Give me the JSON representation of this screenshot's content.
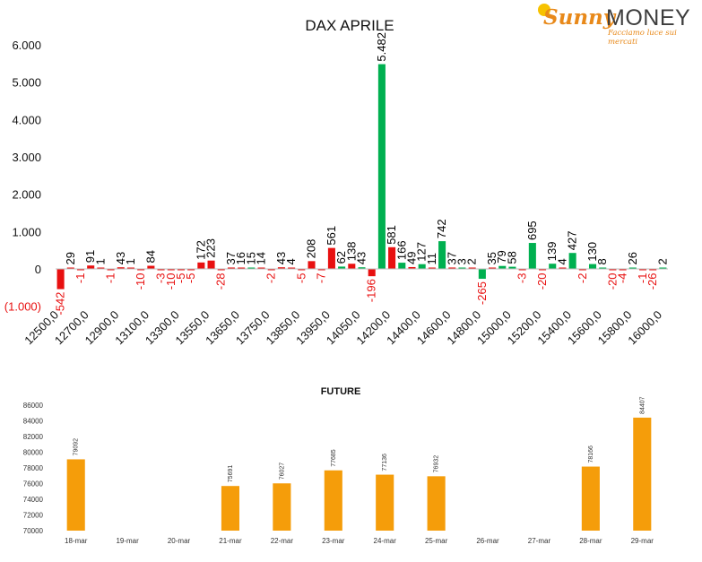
{
  "logo": {
    "brand_a": "Sunny",
    "brand_b": "MONEY",
    "tagline": "Facciamo luce sui mercati"
  },
  "chart_data": [
    {
      "type": "bar",
      "title": "DAX APRILE",
      "ylim": [
        -1000,
        6000
      ],
      "yticks": [
        "(1.000)",
        "0",
        "1.000",
        "2.000",
        "3.000",
        "4.000",
        "5.000",
        "6.000"
      ],
      "ytick_values": [
        -1000,
        0,
        1000,
        2000,
        3000,
        4000,
        5000,
        6000
      ],
      "grid": false,
      "colors": {
        "series_a": "#e81010",
        "series_b": "#00b050",
        "negative_label": "#e81010",
        "positive_label": "#000000"
      },
      "xtick_labels": [
        "12500,0",
        "12700,0",
        "12900,0",
        "13100,0",
        "13300,0",
        "13550,0",
        "13650,0",
        "13750,0",
        "13850,0",
        "13950,0",
        "14050,0",
        "14200,0",
        "14400,0",
        "14600,0",
        "14800,0",
        "15000,0",
        "15200,0",
        "15400,0",
        "15600,0",
        "15800,0",
        "16000,0"
      ],
      "bars": [
        {
          "value": -542,
          "label": "-542",
          "color": "series_a"
        },
        {
          "value": 29,
          "label": "29",
          "color": "series_a"
        },
        {
          "value": -1,
          "label": "-1",
          "color": "series_a"
        },
        {
          "value": 91,
          "label": "91",
          "color": "series_a"
        },
        {
          "value": 1,
          "label": "1",
          "color": "series_a"
        },
        {
          "value": -1,
          "label": "-1",
          "color": "series_a"
        },
        {
          "value": 43,
          "label": "43",
          "color": "series_a"
        },
        {
          "value": 1,
          "label": "1",
          "color": "series_a"
        },
        {
          "value": -10,
          "label": "-10",
          "color": "series_a"
        },
        {
          "value": 84,
          "label": "84",
          "color": "series_a"
        },
        {
          "value": -3,
          "label": "-3",
          "color": "series_a"
        },
        {
          "value": -10,
          "label": "-10",
          "color": "series_a"
        },
        {
          "value": -5,
          "label": "-5",
          "color": "series_a"
        },
        {
          "value": -5,
          "label": "-5",
          "color": "series_a"
        },
        {
          "value": 172,
          "label": "172",
          "color": "series_a"
        },
        {
          "value": 223,
          "label": "223",
          "color": "series_a"
        },
        {
          "value": -28,
          "label": "-28",
          "color": "series_a"
        },
        {
          "value": 37,
          "label": "37",
          "color": "series_a"
        },
        {
          "value": 16,
          "label": "16",
          "color": "series_a"
        },
        {
          "value": 15,
          "label": "15",
          "color": "series_b"
        },
        {
          "value": 14,
          "label": "14",
          "color": "series_a"
        },
        {
          "value": -2,
          "label": "-2",
          "color": "series_a"
        },
        {
          "value": 43,
          "label": "43",
          "color": "series_a"
        },
        {
          "value": 4,
          "label": "4",
          "color": "series_a"
        },
        {
          "value": -5,
          "label": "-5",
          "color": "series_a"
        },
        {
          "value": 208,
          "label": "208",
          "color": "series_a"
        },
        {
          "value": -7,
          "label": "-7",
          "color": "series_a"
        },
        {
          "value": 561,
          "label": "561",
          "color": "series_a"
        },
        {
          "value": 62,
          "label": "62",
          "color": "series_b"
        },
        {
          "value": 138,
          "label": "138",
          "color": "series_a"
        },
        {
          "value": 43,
          "label": "43",
          "color": "series_b"
        },
        {
          "value": -196,
          "label": "-196",
          "color": "series_a"
        },
        {
          "value": 5482,
          "label": "5.482",
          "color": "series_b"
        },
        {
          "value": 581,
          "label": "581",
          "color": "series_a"
        },
        {
          "value": 166,
          "label": "166",
          "color": "series_b"
        },
        {
          "value": 49,
          "label": "49",
          "color": "series_a"
        },
        {
          "value": 127,
          "label": "127",
          "color": "series_b"
        },
        {
          "value": 11,
          "label": "11",
          "color": "series_a"
        },
        {
          "value": 742,
          "label": "742",
          "color": "series_b"
        },
        {
          "value": 37,
          "label": "37",
          "color": "series_a"
        },
        {
          "value": 3,
          "label": "3",
          "color": "series_b"
        },
        {
          "value": 2,
          "label": "2",
          "color": "series_a"
        },
        {
          "value": -265,
          "label": "-265",
          "color": "series_b"
        },
        {
          "value": 35,
          "label": "35",
          "color": "series_a"
        },
        {
          "value": 79,
          "label": "79",
          "color": "series_b"
        },
        {
          "value": 58,
          "label": "58",
          "color": "series_b"
        },
        {
          "value": -3,
          "label": "-3",
          "color": "series_a"
        },
        {
          "value": 695,
          "label": "695",
          "color": "series_b"
        },
        {
          "value": -20,
          "label": "-20",
          "color": "series_a"
        },
        {
          "value": 139,
          "label": "139",
          "color": "series_b"
        },
        {
          "value": 4,
          "label": "4",
          "color": "series_a"
        },
        {
          "value": 427,
          "label": "427",
          "color": "series_b"
        },
        {
          "value": -2,
          "label": "-2",
          "color": "series_a"
        },
        {
          "value": 130,
          "label": "130",
          "color": "series_b"
        },
        {
          "value": 8,
          "label": "8",
          "color": "series_b"
        },
        {
          "value": -20,
          "label": "-20",
          "color": "series_a"
        },
        {
          "value": -4,
          "label": "-4",
          "color": "series_a"
        },
        {
          "value": 26,
          "label": "26",
          "color": "series_b"
        },
        {
          "value": -1,
          "label": "-1",
          "color": "series_a"
        },
        {
          "value": -26,
          "label": "-26",
          "color": "series_a"
        },
        {
          "value": 2,
          "label": "2",
          "color": "series_b"
        }
      ]
    },
    {
      "type": "bar",
      "title": "FUTURE",
      "categories": [
        "18-mar",
        "19-mar",
        "20-mar",
        "21-mar",
        "22-mar",
        "23-mar",
        "24-mar",
        "25-mar",
        "26-mar",
        "27-mar",
        "28-mar",
        "29-mar"
      ],
      "values": [
        79092,
        null,
        null,
        75691,
        76027,
        77685,
        77136,
        76932,
        null,
        null,
        78166,
        84407
      ],
      "data_labels": [
        "79092",
        "",
        "",
        "75691",
        "76027",
        "77685",
        "77136",
        "76932",
        "",
        "",
        "78166",
        "84407"
      ],
      "ylim": [
        70000,
        86000
      ],
      "yticks": [
        "70000",
        "72000",
        "74000",
        "76000",
        "78000",
        "80000",
        "82000",
        "84000",
        "86000"
      ],
      "ytick_values": [
        70000,
        72000,
        74000,
        76000,
        78000,
        80000,
        82000,
        84000,
        86000
      ],
      "grid": false,
      "colors": {
        "bar": "#f59d0a"
      }
    }
  ]
}
